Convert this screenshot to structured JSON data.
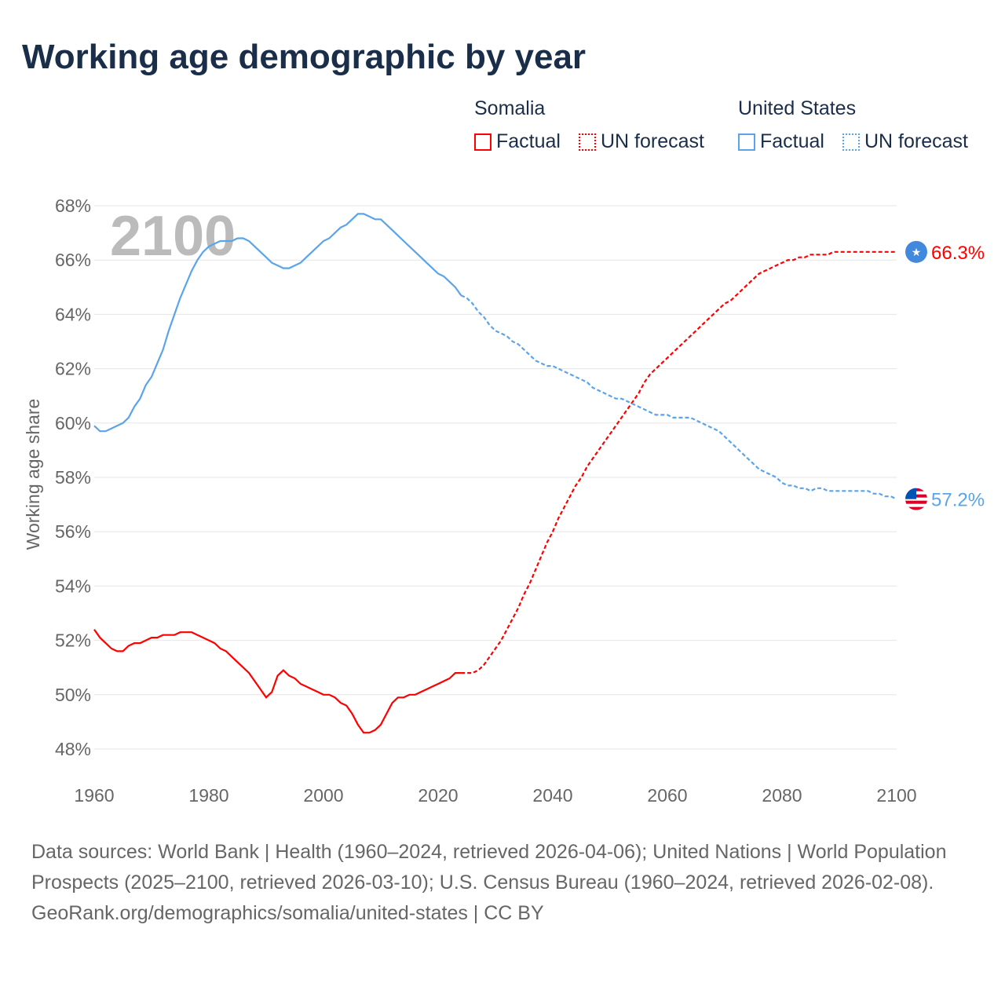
{
  "title": "Working age demographic by year",
  "legend": {
    "groups": [
      {
        "name": "Somalia",
        "color": "#ff0000",
        "items": [
          "Factual",
          "UN forecast"
        ]
      },
      {
        "name": "United States",
        "color": "#5ba4ea",
        "items": [
          "Factual",
          "UN forecast"
        ]
      }
    ]
  },
  "footer": {
    "sources": "Data sources: World Bank | Health (1960–2024, retrieved 2026-04-06); United Nations | World Population Prospects (2025–2100, retrieved 2026-03-10); U.S. Census Bureau (1960–2024, retrieved 2026-02-08).",
    "credit": "GeoRank.org/demographics/somalia/united-states | CC BY"
  },
  "chart_data": {
    "type": "line",
    "title": "Working age demographic by year",
    "ylabel": "Working age share",
    "xlabel": "",
    "year_watermark": "2100",
    "xlim": [
      1960,
      2100
    ],
    "ylim": [
      48,
      68
    ],
    "x_ticks": [
      "1960",
      "1980",
      "2000",
      "2020",
      "2040",
      "2060",
      "2080",
      "2100"
    ],
    "y_ticks": [
      "48%",
      "50%",
      "52%",
      "54%",
      "56%",
      "58%",
      "60%",
      "62%",
      "64%",
      "66%",
      "68%"
    ],
    "grid": true,
    "series": [
      {
        "name": "Somalia",
        "color": "#ff0000",
        "end_label": "66.3%",
        "factual_start": 1960,
        "factual": [
          52.4,
          52.1,
          51.9,
          51.7,
          51.6,
          51.6,
          51.8,
          51.9,
          51.9,
          52.0,
          52.1,
          52.1,
          52.2,
          52.2,
          52.2,
          52.3,
          52.3,
          52.3,
          52.2,
          52.1,
          52.0,
          51.9,
          51.7,
          51.6,
          51.4,
          51.2,
          51.0,
          50.8,
          50.5,
          50.2,
          49.9,
          50.1,
          50.7,
          50.9,
          50.7,
          50.6,
          50.4,
          50.3,
          50.2,
          50.1,
          50.0,
          50.0,
          49.9,
          49.7,
          49.6,
          49.3,
          48.9,
          48.6,
          48.6,
          48.7,
          48.9,
          49.3,
          49.7,
          49.9,
          49.9,
          50.0,
          50.0,
          50.1,
          50.2,
          50.3,
          50.4,
          50.5,
          50.6,
          50.8,
          50.8
        ],
        "forecast_start": 2024,
        "forecast": [
          50.8,
          50.8,
          50.8,
          50.9,
          51.1,
          51.4,
          51.7,
          52.0,
          52.4,
          52.8,
          53.2,
          53.7,
          54.1,
          54.6,
          55.1,
          55.6,
          56.0,
          56.5,
          56.9,
          57.3,
          57.7,
          58.0,
          58.4,
          58.7,
          59.0,
          59.3,
          59.6,
          59.9,
          60.2,
          60.5,
          60.8,
          61.1,
          61.5,
          61.8,
          62.0,
          62.2,
          62.4,
          62.6,
          62.8,
          63.0,
          63.2,
          63.4,
          63.6,
          63.8,
          64.0,
          64.2,
          64.4,
          64.5,
          64.7,
          64.9,
          65.1,
          65.3,
          65.5,
          65.6,
          65.7,
          65.8,
          65.9,
          66.0,
          66.0,
          66.1,
          66.1,
          66.2,
          66.2,
          66.2,
          66.2,
          66.3,
          66.3,
          66.3,
          66.3,
          66.3,
          66.3,
          66.3,
          66.3,
          66.3,
          66.3,
          66.3,
          66.3
        ]
      },
      {
        "name": "United States",
        "color": "#5ba4ea",
        "end_label": "57.2%",
        "factual_start": 1960,
        "factual": [
          59.9,
          59.7,
          59.7,
          59.8,
          59.9,
          60.0,
          60.2,
          60.6,
          60.9,
          61.4,
          61.7,
          62.2,
          62.7,
          63.4,
          64.0,
          64.6,
          65.1,
          65.6,
          66.0,
          66.3,
          66.5,
          66.6,
          66.7,
          66.7,
          66.7,
          66.8,
          66.8,
          66.7,
          66.5,
          66.3,
          66.1,
          65.9,
          65.8,
          65.7,
          65.7,
          65.8,
          65.9,
          66.1,
          66.3,
          66.5,
          66.7,
          66.8,
          67.0,
          67.2,
          67.3,
          67.5,
          67.7,
          67.7,
          67.6,
          67.5,
          67.5,
          67.3,
          67.1,
          66.9,
          66.7,
          66.5,
          66.3,
          66.1,
          65.9,
          65.7,
          65.5,
          65.4,
          65.2,
          65.0,
          64.7
        ],
        "forecast_start": 2024,
        "forecast": [
          64.7,
          64.6,
          64.4,
          64.1,
          63.9,
          63.6,
          63.4,
          63.3,
          63.2,
          63.0,
          62.9,
          62.7,
          62.5,
          62.3,
          62.2,
          62.1,
          62.1,
          62.0,
          61.9,
          61.8,
          61.7,
          61.6,
          61.5,
          61.3,
          61.2,
          61.1,
          61.0,
          60.9,
          60.9,
          60.8,
          60.7,
          60.6,
          60.5,
          60.4,
          60.3,
          60.3,
          60.3,
          60.2,
          60.2,
          60.2,
          60.2,
          60.1,
          60.0,
          59.9,
          59.8,
          59.7,
          59.5,
          59.3,
          59.1,
          58.9,
          58.7,
          58.5,
          58.3,
          58.2,
          58.1,
          58.0,
          57.8,
          57.7,
          57.7,
          57.6,
          57.6,
          57.5,
          57.6,
          57.6,
          57.5,
          57.5,
          57.5,
          57.5,
          57.5,
          57.5,
          57.5,
          57.5,
          57.4,
          57.4,
          57.3,
          57.3,
          57.2
        ]
      }
    ]
  }
}
